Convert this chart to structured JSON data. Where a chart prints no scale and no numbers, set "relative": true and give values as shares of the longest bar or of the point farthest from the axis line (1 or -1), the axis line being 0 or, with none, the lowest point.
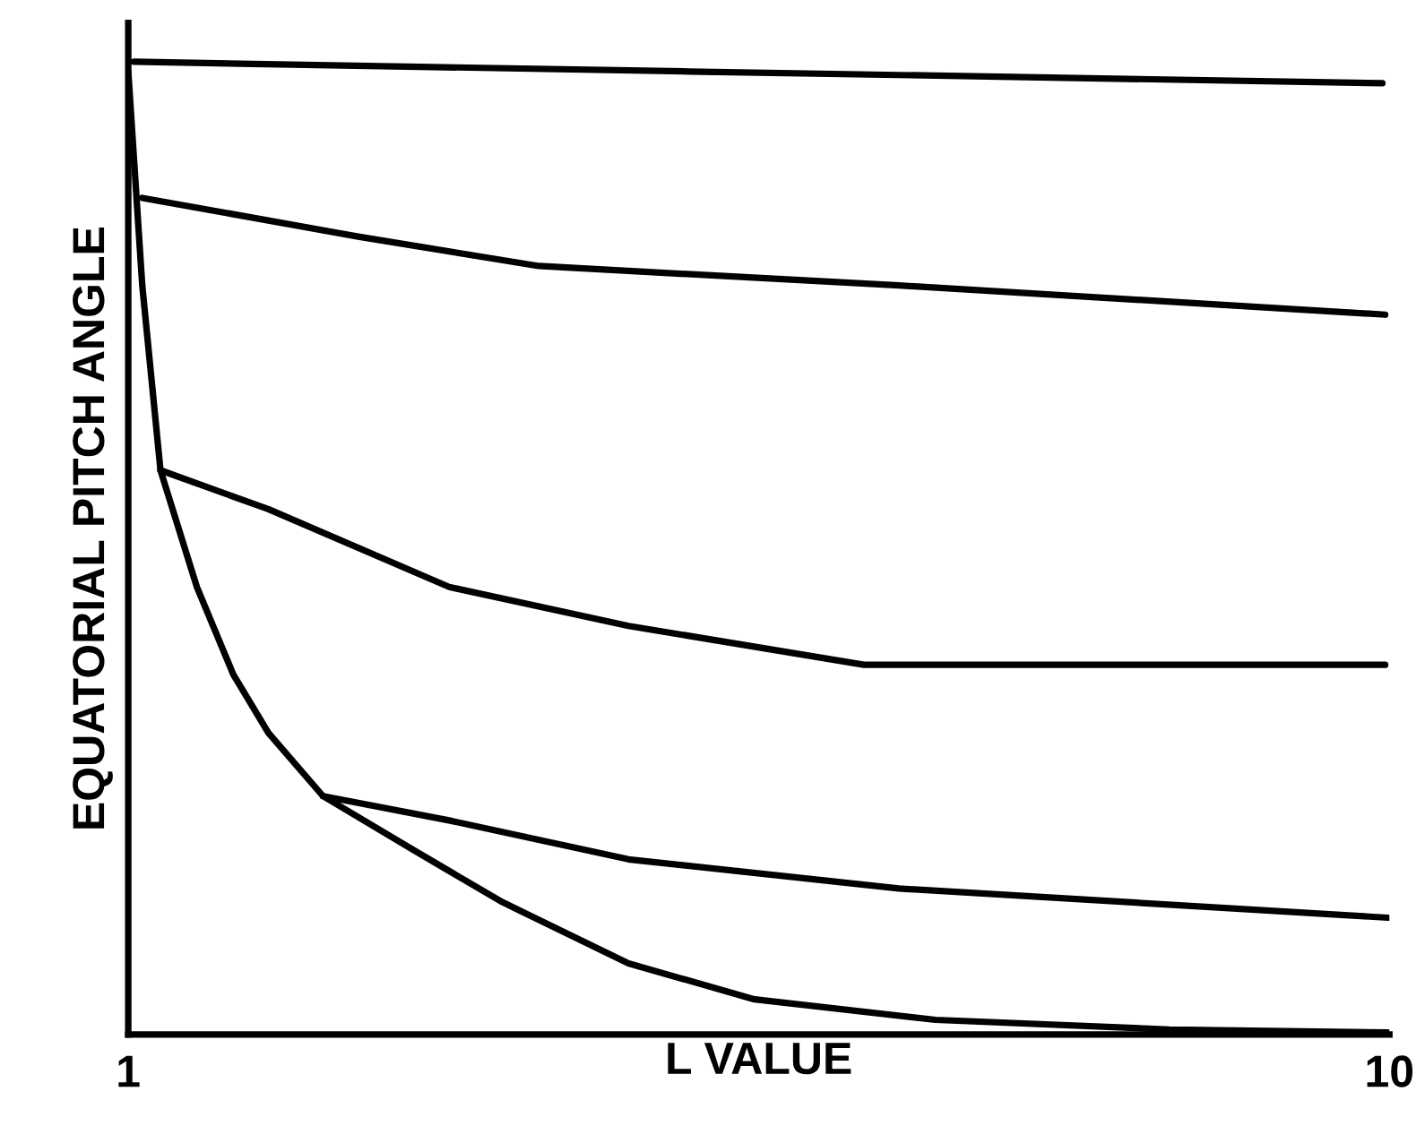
{
  "chart_data": {
    "type": "line",
    "relative": true,
    "xlabel": "L VALUE",
    "ylabel": "EQUATORIAL PITCH ANGLE",
    "xlim": [
      1,
      10
    ],
    "xticks": [
      1,
      10
    ],
    "grid": false,
    "legend": false,
    "marker": "none",
    "line_style": "solid",
    "series": [
      {
        "color": "#000000",
        "x": [
          1.04,
          5,
          9.95
        ],
        "values": [
          1.0,
          0.99,
          0.978
        ]
      },
      {
        "color": "#000000",
        "x": [
          1.1,
          2.65,
          3.93,
          6.5,
          9.97
        ],
        "values": [
          0.86,
          0.82,
          0.79,
          0.77,
          0.74
        ]
      },
      {
        "color": "#000000",
        "x": [
          1.23,
          2.0,
          3.29,
          4.57,
          6.25,
          9.97
        ],
        "values": [
          0.58,
          0.54,
          0.46,
          0.42,
          0.38,
          0.38
        ]
      },
      {
        "color": "#000000",
        "x": [
          2.39,
          3.29,
          4.57,
          6.5,
          9.99
        ],
        "values": [
          0.245,
          0.22,
          0.18,
          0.15,
          0.12
        ]
      },
      {
        "color": "#000000",
        "x": [
          1.0,
          1.1,
          1.23,
          1.49,
          1.75,
          2.0,
          2.39,
          3.03,
          3.67,
          4.57,
          5.47,
          6.76,
          8.43,
          9.99
        ],
        "values": [
          0.99,
          0.77,
          0.58,
          0.46,
          0.37,
          0.31,
          0.245,
          0.19,
          0.136,
          0.073,
          0.036,
          0.015,
          0.005,
          0.002
        ]
      }
    ]
  }
}
